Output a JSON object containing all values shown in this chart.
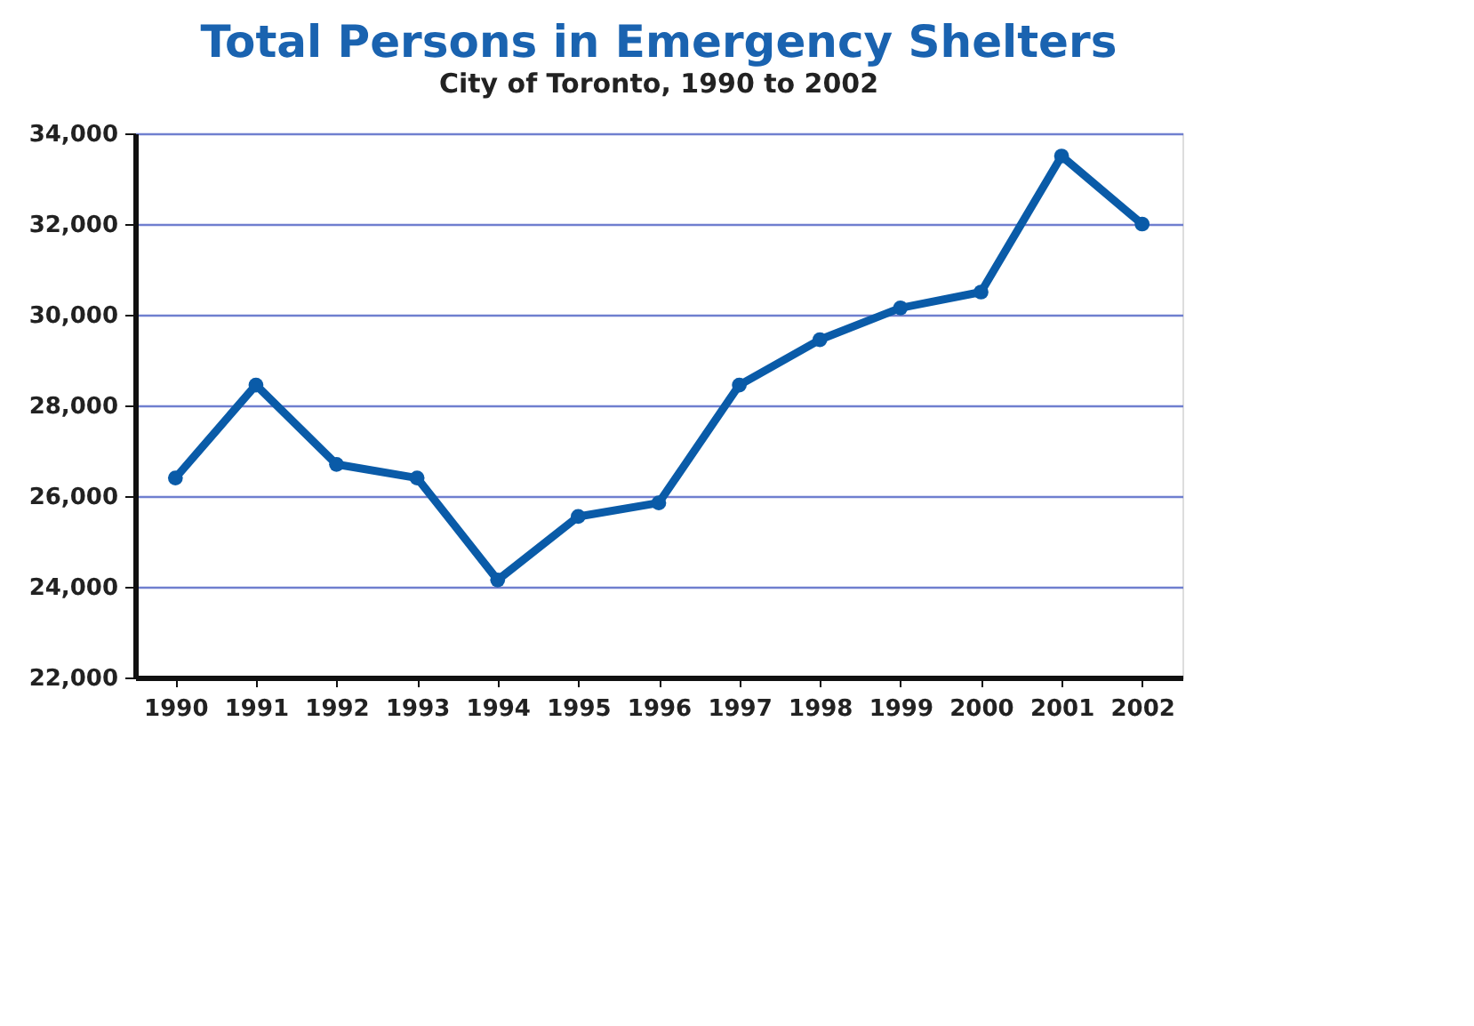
{
  "chart_data": {
    "type": "line",
    "title": "Total Persons in Emergency Shelters",
    "subtitle": "City of Toronto, 1990 to 2002",
    "categories": [
      "1990",
      "1991",
      "1992",
      "1993",
      "1994",
      "1995",
      "1996",
      "1997",
      "1998",
      "1999",
      "2000",
      "2001",
      "2002"
    ],
    "series": [
      {
        "color": "#0a5ba8",
        "values": [
          26400,
          28450,
          26700,
          26400,
          24150,
          25550,
          25850,
          28450,
          29450,
          30150,
          30500,
          33500,
          32000
        ]
      }
    ],
    "ylim": [
      22000,
      34000
    ],
    "yticks": [
      {
        "value": 22000,
        "label": "22,000"
      },
      {
        "value": 24000,
        "label": "24,000"
      },
      {
        "value": 26000,
        "label": "26,000"
      },
      {
        "value": 28000,
        "label": "28,000"
      },
      {
        "value": 30000,
        "label": "30,000"
      },
      {
        "value": 32000,
        "label": "32,000"
      },
      {
        "value": 34000,
        "label": "34,000"
      }
    ],
    "grid": "y",
    "marker": "circle",
    "line_style": "solid"
  }
}
